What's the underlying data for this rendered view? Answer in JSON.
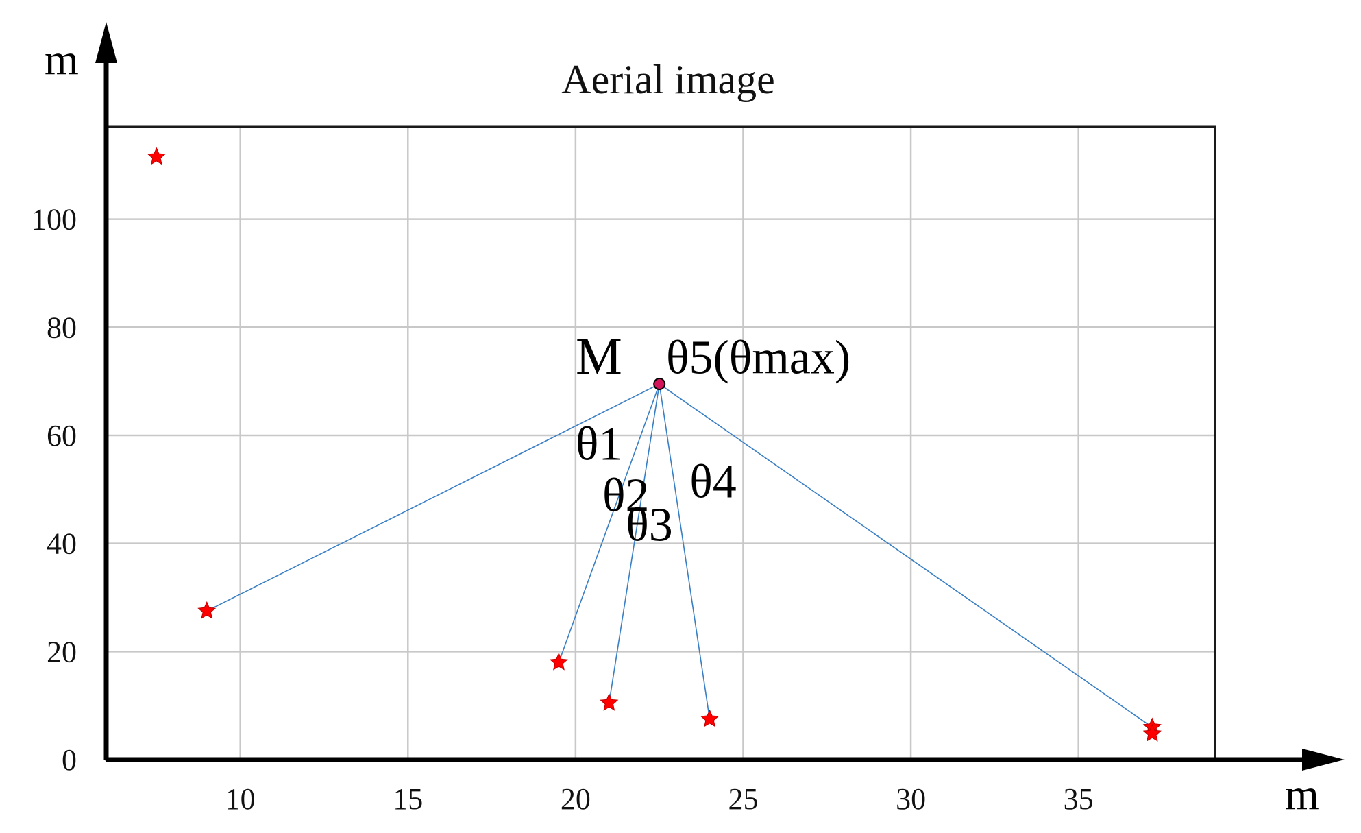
{
  "chart_data": {
    "type": "scatter",
    "title": "Aerial image",
    "xlabel": "m",
    "ylabel": "m",
    "xlim": [
      6,
      39
    ],
    "ylim": [
      0,
      117
    ],
    "grid": true,
    "x_ticks": [
      10,
      15,
      20,
      25,
      30,
      35
    ],
    "y_ticks": [
      0,
      20,
      40,
      60,
      80,
      100
    ],
    "points": [
      {
        "x": 7.5,
        "y": 111.5
      },
      {
        "x": 9.0,
        "y": 27.5
      },
      {
        "x": 19.5,
        "y": 18.0
      },
      {
        "x": 21.0,
        "y": 10.5
      },
      {
        "x": 24.0,
        "y": 7.5
      },
      {
        "x": 37.2,
        "y": 6.0
      },
      {
        "x": 37.2,
        "y": 4.8
      }
    ],
    "center": {
      "label": "M",
      "x": 22.5,
      "y": 69.5
    },
    "rays": [
      {
        "to": [
          9.0,
          27.5
        ]
      },
      {
        "to": [
          19.5,
          18.0
        ]
      },
      {
        "to": [
          21.0,
          10.5
        ]
      },
      {
        "to": [
          24.0,
          7.5
        ]
      },
      {
        "to": [
          37.2,
          6.0
        ]
      }
    ],
    "annotations": [
      {
        "text": "θ5(θmax)",
        "x": 22.7,
        "y": 71.5
      },
      {
        "text": "θ1",
        "x": 20.0,
        "y": 55.5
      },
      {
        "text": "θ2",
        "x": 20.8,
        "y": 46.0
      },
      {
        "text": "θ3",
        "x": 21.5,
        "y": 40.5
      },
      {
        "text": "θ4",
        "x": 23.4,
        "y": 48.5
      }
    ]
  }
}
